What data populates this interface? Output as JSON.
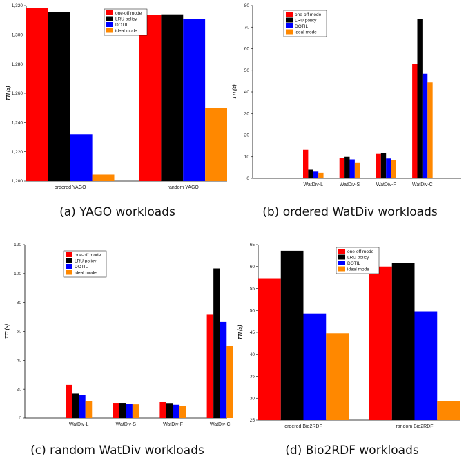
{
  "colors": {
    "one_off": "#ff0000",
    "lru": "#000000",
    "dotil": "#0000ff",
    "ideal": "#ff8800"
  },
  "chart_data": [
    {
      "type": "bar",
      "caption": "(a) YAGO workloads",
      "ylabel": "TTI (s)",
      "ylim": [
        1200,
        1320
      ],
      "yticks": [
        1200,
        1220,
        1240,
        1260,
        1280,
        1300,
        1320
      ],
      "ytick_labels": [
        "1,200",
        "1,220",
        "1,240",
        "1,260",
        "1,280",
        "1,300",
        "1,320"
      ],
      "categories": [
        "ordered YAGO",
        "random YAGO"
      ],
      "series": [
        {
          "name": "one-off mode",
          "values": [
            1318.5,
            1313.5
          ]
        },
        {
          "name": "LRU policy",
          "values": [
            1315.5,
            1314
          ]
        },
        {
          "name": "DOTIL",
          "values": [
            1232,
            1311
          ]
        },
        {
          "name": "ideal mode",
          "values": [
            1204.5,
            1250
          ]
        }
      ],
      "legend": "top-right",
      "grid": false
    },
    {
      "type": "bar",
      "caption": "(b) ordered WatDiv workloads",
      "ylabel": "TTI (s)",
      "ylim": [
        0,
        80
      ],
      "yticks": [
        0,
        10,
        20,
        30,
        40,
        50,
        60,
        70,
        80
      ],
      "ytick_labels": [
        "0",
        "10",
        "20",
        "30",
        "40",
        "50",
        "60",
        "70",
        "80"
      ],
      "categories": [
        "WatDiv-L",
        "WatDiv-S",
        "WatDiv-F",
        "WatDiv-C"
      ],
      "series": [
        {
          "name": "one-off mode",
          "values": [
            13.2,
            9.6,
            11.3,
            52.8
          ]
        },
        {
          "name": "LRU policy",
          "values": [
            4.0,
            10.0,
            11.6,
            73.6
          ]
        },
        {
          "name": "DOTIL",
          "values": [
            3.1,
            8.8,
            9.2,
            48.4
          ]
        },
        {
          "name": "ideal mode",
          "values": [
            2.6,
            7.1,
            8.5,
            44.4
          ]
        }
      ],
      "legend": "top-left",
      "grid": false
    },
    {
      "type": "bar",
      "caption": "(c) random WatDiv workloads",
      "ylabel": "TTI (s)",
      "ylim": [
        0,
        120
      ],
      "yticks": [
        0,
        20,
        40,
        60,
        80,
        100,
        120
      ],
      "ytick_labels": [
        "0",
        "20",
        "40",
        "60",
        "80",
        "100",
        "120"
      ],
      "categories": [
        "WatDiv-L",
        "WatDiv-S",
        "WatDiv-F",
        "WatDiv-C"
      ],
      "series": [
        {
          "name": "one-off mode",
          "values": [
            23.0,
            10.5,
            11.0,
            71.5
          ]
        },
        {
          "name": "LRU policy",
          "values": [
            17.0,
            10.5,
            10.4,
            103.5
          ]
        },
        {
          "name": "DOTIL",
          "values": [
            16.0,
            10.0,
            9.2,
            66.5
          ]
        },
        {
          "name": "ideal mode",
          "values": [
            11.7,
            9.5,
            8.4,
            50.0
          ]
        }
      ],
      "legend": "top-left",
      "grid": false
    },
    {
      "type": "bar",
      "caption": "(d) Bio2RDF workloads",
      "ylabel": "TTI (s)",
      "ylim": [
        25,
        65
      ],
      "yticks": [
        25,
        30,
        35,
        40,
        45,
        50,
        55,
        60,
        65
      ],
      "ytick_labels": [
        "25",
        "30",
        "35",
        "40",
        "45",
        "50",
        "55",
        "60",
        "65"
      ],
      "categories": [
        "ordered Bio2RDF",
        "random Bio2RDF"
      ],
      "series": [
        {
          "name": "one-off mode",
          "values": [
            57.2,
            60.0
          ]
        },
        {
          "name": "LRU policy",
          "values": [
            63.6,
            60.8
          ]
        },
        {
          "name": "DOTIL",
          "values": [
            49.3,
            49.8
          ]
        },
        {
          "name": "ideal mode",
          "values": [
            44.8,
            29.3
          ]
        }
      ],
      "legend": "top-right",
      "grid": false
    }
  ]
}
